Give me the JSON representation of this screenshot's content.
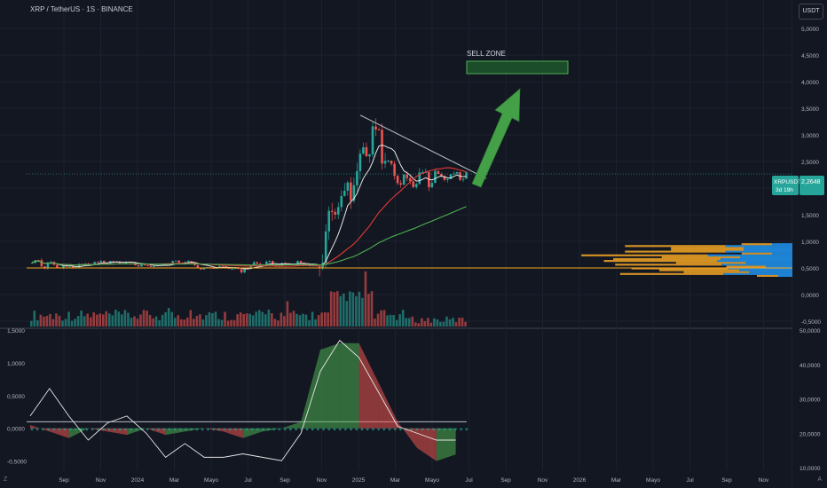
{
  "header": {
    "symbol_title": "XRP / TetherUS · 1S · BINANCE",
    "currency_label": "USDT"
  },
  "annotations": {
    "sell_zone_label": "SELL ZONE"
  },
  "price_tag": {
    "symbol": "XRPUSDT",
    "price": "2,2648",
    "countdown": "3d 19h"
  },
  "corner_marks": {
    "left": "Z",
    "right": "A"
  },
  "colors": {
    "background": "#131722",
    "bullish": "#26a69a",
    "bearish": "#ef5350",
    "ma_fast": "#e6e6e6",
    "ma_mid": "#e53935",
    "ma_slow": "#4caf50",
    "level_line": "#f5a623",
    "sell_zone": "#2e7d32",
    "arrow": "#4caf50"
  },
  "chart_data": [
    {
      "type": "candlestick",
      "x_tick_labels": [
        "Sep",
        "Nov",
        "2024",
        "Mar",
        "Mayo",
        "Jul",
        "Sep",
        "Nov",
        "2025",
        "Mar",
        "Mayo",
        "Jul",
        "Sep",
        "Nov",
        "2026",
        "Mar",
        "Mayo",
        "Jul",
        "Sep",
        "Nov"
      ],
      "y_tick_labels": [
        "5,0000",
        "4,5000",
        "4,0000",
        "3,5000",
        "3,0000",
        "2,5000",
        "2,0000",
        "1,5000",
        "1,0000",
        "0,5000",
        "0,0000",
        "-0,5000"
      ],
      "ylim": [
        -0.6,
        5.2
      ],
      "last_price": 2.2648,
      "horizontal_level": 0.5,
      "trendline": [
        {
          "x": "Dic 2024",
          "y": 3.35
        },
        {
          "x": "Jul 2025",
          "y": 2.2
        }
      ],
      "sell_zone": {
        "y_low": 4.4,
        "y_high": 4.55
      },
      "ohlc_monthly_approx": [
        {
          "x": "Ago 2023",
          "o": 0.6,
          "h": 0.9,
          "l": 0.5,
          "c": 0.55
        },
        {
          "x": "Sep 2023",
          "o": 0.55,
          "h": 0.6,
          "l": 0.48,
          "c": 0.5
        },
        {
          "x": "Oct 2023",
          "o": 0.5,
          "h": 0.62,
          "l": 0.48,
          "c": 0.6
        },
        {
          "x": "Nov 2023",
          "o": 0.6,
          "h": 0.7,
          "l": 0.55,
          "c": 0.62
        },
        {
          "x": "Dic 2023",
          "o": 0.62,
          "h": 0.67,
          "l": 0.58,
          "c": 0.6
        },
        {
          "x": "Ene 2024",
          "o": 0.6,
          "h": 0.62,
          "l": 0.5,
          "c": 0.52
        },
        {
          "x": "Feb 2024",
          "o": 0.52,
          "h": 0.6,
          "l": 0.5,
          "c": 0.57
        },
        {
          "x": "Mar 2024",
          "o": 0.57,
          "h": 0.74,
          "l": 0.55,
          "c": 0.62
        },
        {
          "x": "Abr 2024",
          "o": 0.62,
          "h": 0.63,
          "l": 0.45,
          "c": 0.5
        },
        {
          "x": "May 2024",
          "o": 0.5,
          "h": 0.56,
          "l": 0.48,
          "c": 0.52
        },
        {
          "x": "Jun 2024",
          "o": 0.52,
          "h": 0.53,
          "l": 0.45,
          "c": 0.47
        },
        {
          "x": "Jul 2024",
          "o": 0.47,
          "h": 0.64,
          "l": 0.38,
          "c": 0.6
        },
        {
          "x": "Ago 2024",
          "o": 0.6,
          "h": 0.64,
          "l": 0.43,
          "c": 0.57
        },
        {
          "x": "Sep 2024",
          "o": 0.57,
          "h": 0.66,
          "l": 0.53,
          "c": 0.6
        },
        {
          "x": "Oct 2024",
          "o": 0.6,
          "h": 0.6,
          "l": 0.5,
          "c": 0.52
        },
        {
          "x": "Nov 2024",
          "o": 0.52,
          "h": 1.9,
          "l": 0.5,
          "c": 1.75
        },
        {
          "x": "Dic 2024",
          "o": 1.75,
          "h": 2.9,
          "l": 1.6,
          "c": 2.1
        },
        {
          "x": "Ene 2025",
          "o": 2.1,
          "h": 3.35,
          "l": 2.0,
          "c": 3.0
        },
        {
          "x": "Feb 2025",
          "o": 3.0,
          "h": 3.1,
          "l": 1.8,
          "c": 2.2
        },
        {
          "x": "Mar 2025",
          "o": 2.2,
          "h": 2.5,
          "l": 1.9,
          "c": 2.1
        },
        {
          "x": "Abr 2025",
          "o": 2.1,
          "h": 2.3,
          "l": 1.6,
          "c": 2.2
        },
        {
          "x": "May 2025",
          "o": 2.2,
          "h": 2.6,
          "l": 2.1,
          "c": 2.2
        },
        {
          "x": "Jun 2025",
          "o": 2.2,
          "h": 2.3,
          "l": 1.9,
          "c": 2.27
        }
      ]
    },
    {
      "type": "area",
      "oscillator": true,
      "y_tick_labels": [
        "1,5000",
        "1,0000",
        "0,5000",
        "0,0000",
        "-0,5000"
      ],
      "y2_tick_labels": [
        "50,0000",
        "40,0000",
        "30,0000",
        "20,0000",
        "10,0000"
      ],
      "ylim": [
        -0.6,
        1.5
      ],
      "y2lim": [
        10,
        50
      ],
      "series": [
        {
          "values": [
            0.05,
            -0.05,
            -0.15,
            0.0,
            -0.05,
            -0.1,
            0.0,
            -0.1,
            -0.05,
            0.0,
            -0.05,
            -0.15,
            -0.05,
            0.0,
            0.1,
            1.2,
            1.3,
            1.3,
            0.7,
            0.1,
            -0.3,
            -0.5,
            -0.4
          ]
        },
        {
          "values": [
            25,
            33,
            25,
            18,
            23,
            25,
            20,
            13,
            17,
            13,
            13,
            14,
            13,
            12,
            20,
            38,
            47,
            42,
            32,
            22,
            20,
            18,
            18
          ]
        }
      ]
    }
  ]
}
